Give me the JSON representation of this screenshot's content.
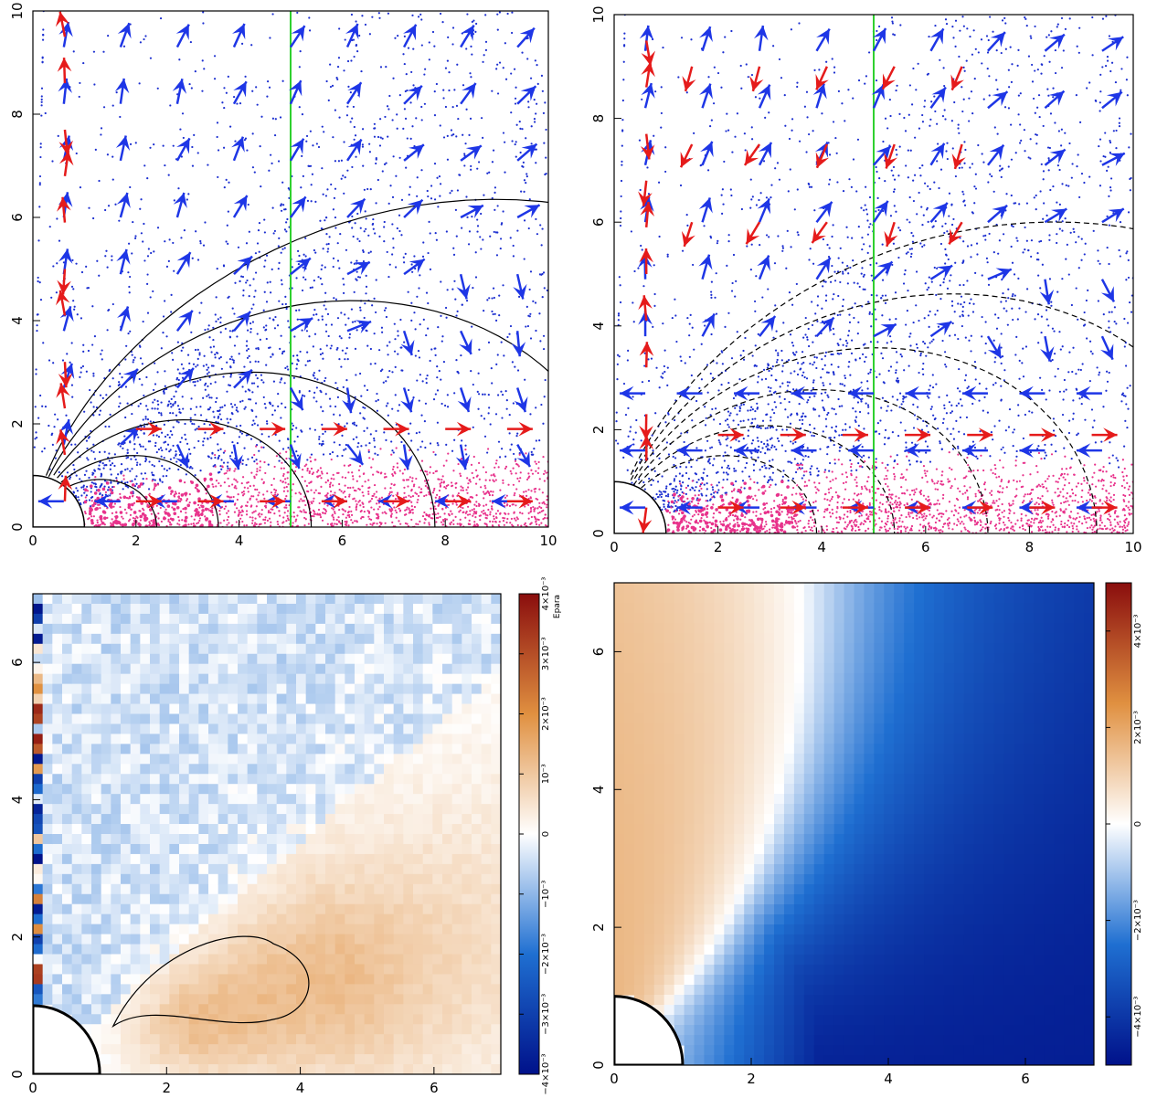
{
  "colors": {
    "axis": "#000000",
    "outflow_points": "#1c2fd0",
    "disk_points": "#e8338c",
    "velocity_arrow": "#1e36e6",
    "field_arrow": "#e51b1b",
    "vertical_line": "#2fd02f",
    "cmap_neg_dark": "#00118a",
    "cmap_neg": "#1f6fd1",
    "cmap_zero": "#ffffff",
    "cmap_pos": "#e09040",
    "cmap_pos_dark": "#8a0d0d"
  },
  "chart_data": [
    {
      "type": "scatter",
      "panel": "top-left",
      "xlim": [
        0,
        10
      ],
      "ylim": [
        0,
        10
      ],
      "xticks": [
        "0",
        "2",
        "4",
        "6",
        "8",
        "10"
      ],
      "yticks": [
        "0",
        "2",
        "4",
        "6",
        "8",
        "10"
      ],
      "vertical_line_x": 5,
      "star_radius": 1,
      "field_lines": [
        0.8,
        1.2,
        1.8,
        2.6,
        3.8,
        5.5
      ]
    },
    {
      "type": "scatter",
      "panel": "top-right",
      "xlim": [
        0,
        10
      ],
      "ylim": [
        0,
        10
      ],
      "xticks": [
        "0",
        "2",
        "4",
        "6",
        "8",
        "10"
      ],
      "yticks": [
        "0",
        "2",
        "4",
        "6",
        "8",
        "10"
      ],
      "vertical_line_x": 5,
      "star_radius": 1,
      "field_lines": [
        1.3,
        1.8,
        2.4,
        3.1,
        4.0,
        5.2
      ]
    },
    {
      "type": "heatmap",
      "panel": "bottom-left",
      "xlim": [
        0,
        7
      ],
      "ylim": [
        0,
        7
      ],
      "xticks": [
        "0",
        "2",
        "4",
        "6"
      ],
      "yticks": [
        "0",
        "2",
        "4",
        "6"
      ],
      "colorbar": {
        "range": [
          -0.004,
          0.004
        ],
        "ticks": [
          -0.004,
          -0.003,
          -0.002,
          -0.001,
          0,
          0.001,
          0.002,
          0.003,
          0.004
        ],
        "tick_labels": [
          "−4×10⁻³",
          "−3×10⁻³",
          "−2×10⁻³",
          "−10⁻³",
          "0",
          "10⁻³",
          "2×10⁻³",
          "3×10⁻³",
          "4×10⁻³"
        ],
        "label": "Epara"
      },
      "star_radius": 1
    },
    {
      "type": "heatmap",
      "panel": "bottom-right",
      "xlim": [
        0,
        7
      ],
      "ylim": [
        0,
        7
      ],
      "xticks": [
        "0",
        "2",
        "4",
        "6"
      ],
      "yticks": [
        "0",
        "2",
        "4",
        "6"
      ],
      "colorbar": {
        "range": [
          -0.005,
          0.005
        ],
        "ticks": [
          -0.004,
          -0.002,
          0,
          0.002,
          0.004
        ],
        "tick_labels": [
          "−4×10⁻³",
          "−2×10⁻³",
          "0",
          "2×10⁻³",
          "4×10⁻³"
        ],
        "label": ""
      },
      "star_radius": 1
    }
  ]
}
